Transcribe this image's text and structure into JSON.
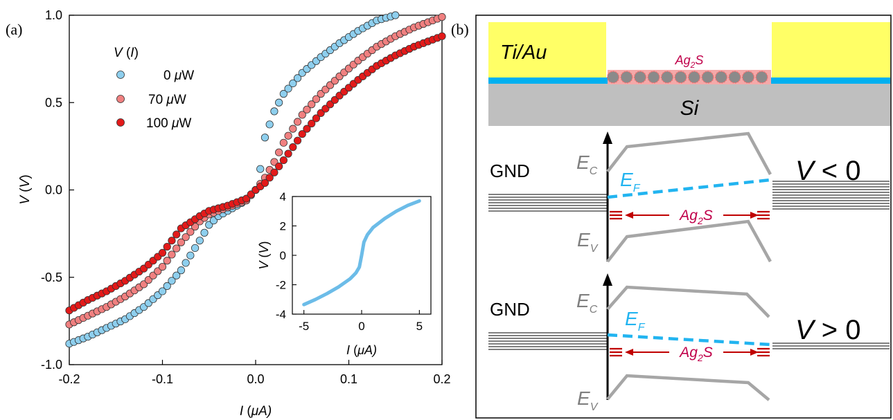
{
  "panel_a": {
    "label": "(a)",
    "legend_title": "V (I)",
    "legend_title_parts": [
      "V",
      " (",
      "I",
      ")"
    ],
    "x_axis_label": [
      "I",
      " (",
      "μ",
      "A)"
    ],
    "y_axis_label": [
      "V",
      " (",
      "V",
      ")"
    ]
  },
  "panel_b": {
    "label": "(b)",
    "metal_label": "Ti/Au",
    "ag2s_label": [
      "Ag",
      "2",
      "S"
    ],
    "si_label": "Si",
    "gnd_label": "GND",
    "ec_label": [
      "E",
      "C"
    ],
    "ev_label": [
      "E",
      "V"
    ],
    "ef_label": [
      "E",
      "F"
    ],
    "bias_negative": [
      "V",
      " < 0"
    ],
    "bias_positive": [
      "V",
      " > 0"
    ],
    "colors": {
      "gold": "#ffff66",
      "blue": "#00b0f0",
      "silicon": "#bfbfbf",
      "band": "#a6a6a6",
      "ag2s": "#c00000",
      "fermi": "#22b4f0"
    }
  },
  "chart_data": [
    {
      "type": "scatter",
      "xlabel": "I (μA)",
      "ylabel": "V (V)",
      "xlim": [
        -0.2,
        0.2
      ],
      "ylim": [
        -1.0,
        1.0
      ],
      "xticks": [
        "-0.2",
        "-0.1",
        "0.0",
        "0.1",
        "0.2"
      ],
      "yticks": [
        "-1.0",
        "-0.5",
        "0.0",
        "0.5",
        "1.0"
      ],
      "legend_position": "top-left",
      "legend_title": "V (I)",
      "series": [
        {
          "name": "0 μW",
          "name_parts": [
            "0 ",
            "μ",
            "W"
          ],
          "color": "#8ecfee",
          "points": [
            [
              -0.2,
              -0.88
            ],
            [
              -0.18,
              -0.84
            ],
            [
              -0.16,
              -0.79
            ],
            [
              -0.14,
              -0.74
            ],
            [
              -0.12,
              -0.67
            ],
            [
              -0.1,
              -0.58
            ],
            [
              -0.08,
              -0.46
            ],
            [
              -0.06,
              -0.29
            ],
            [
              -0.05,
              -0.2
            ],
            [
              -0.04,
              -0.15
            ],
            [
              -0.03,
              -0.12
            ],
            [
              -0.02,
              -0.09
            ],
            [
              -0.01,
              -0.06
            ],
            [
              0.0,
              0.0
            ],
            [
              0.005,
              0.12
            ],
            [
              0.01,
              0.3
            ],
            [
              0.02,
              0.45
            ],
            [
              0.03,
              0.55
            ],
            [
              0.05,
              0.67
            ],
            [
              0.07,
              0.76
            ],
            [
              0.09,
              0.84
            ],
            [
              0.11,
              0.91
            ],
            [
              0.13,
              0.97
            ],
            [
              0.15,
              1.0
            ]
          ]
        },
        {
          "name": "70 μW",
          "name_parts": [
            "70 ",
            "μ",
            "W"
          ],
          "color": "#f08080",
          "points": [
            [
              -0.2,
              -0.77
            ],
            [
              -0.18,
              -0.72
            ],
            [
              -0.16,
              -0.67
            ],
            [
              -0.14,
              -0.61
            ],
            [
              -0.12,
              -0.54
            ],
            [
              -0.1,
              -0.44
            ],
            [
              -0.08,
              -0.3
            ],
            [
              -0.06,
              -0.18
            ],
            [
              -0.05,
              -0.14
            ],
            [
              -0.03,
              -0.1
            ],
            [
              -0.01,
              -0.06
            ],
            [
              0.0,
              0.0
            ],
            [
              0.01,
              0.07
            ],
            [
              0.02,
              0.16
            ],
            [
              0.03,
              0.27
            ],
            [
              0.05,
              0.43
            ],
            [
              0.07,
              0.55
            ],
            [
              0.09,
              0.65
            ],
            [
              0.11,
              0.74
            ],
            [
              0.13,
              0.82
            ],
            [
              0.15,
              0.88
            ],
            [
              0.17,
              0.93
            ],
            [
              0.2,
              0.99
            ]
          ]
        },
        {
          "name": "100 μW",
          "name_parts": [
            "100 ",
            "μ",
            "W"
          ],
          "color": "#e31a1a",
          "points": [
            [
              -0.2,
              -0.69
            ],
            [
              -0.18,
              -0.63
            ],
            [
              -0.16,
              -0.58
            ],
            [
              -0.14,
              -0.52
            ],
            [
              -0.12,
              -0.45
            ],
            [
              -0.1,
              -0.36
            ],
            [
              -0.08,
              -0.22
            ],
            [
              -0.06,
              -0.15
            ],
            [
              -0.05,
              -0.12
            ],
            [
              -0.03,
              -0.09
            ],
            [
              -0.01,
              -0.05
            ],
            [
              0.0,
              0.0
            ],
            [
              0.01,
              0.04
            ],
            [
              0.02,
              0.1
            ],
            [
              0.03,
              0.17
            ],
            [
              0.05,
              0.32
            ],
            [
              0.07,
              0.44
            ],
            [
              0.09,
              0.54
            ],
            [
              0.11,
              0.63
            ],
            [
              0.13,
              0.71
            ],
            [
              0.15,
              0.77
            ],
            [
              0.17,
              0.82
            ],
            [
              0.2,
              0.88
            ]
          ]
        }
      ]
    },
    {
      "type": "line",
      "xlabel": "I (μA)",
      "ylabel": "V (V)",
      "xlim": [
        -6,
        6
      ],
      "ylim": [
        -4,
        4
      ],
      "xticks": [
        "-5",
        "0",
        "5"
      ],
      "yticks": [
        "-4",
        "-2",
        "0",
        "2",
        "4"
      ],
      "series": [
        {
          "color": "#6cbce8",
          "points": [
            [
              -5,
              -3.35
            ],
            [
              -4,
              -3.0
            ],
            [
              -3,
              -2.6
            ],
            [
              -2,
              -2.15
            ],
            [
              -1,
              -1.6
            ],
            [
              -0.5,
              -1.2
            ],
            [
              -0.2,
              -0.8
            ],
            [
              0,
              0.0
            ],
            [
              0.2,
              0.9
            ],
            [
              0.5,
              1.4
            ],
            [
              1,
              1.9
            ],
            [
              2,
              2.5
            ],
            [
              3,
              3.0
            ],
            [
              4,
              3.4
            ],
            [
              5,
              3.7
            ]
          ]
        }
      ]
    }
  ]
}
